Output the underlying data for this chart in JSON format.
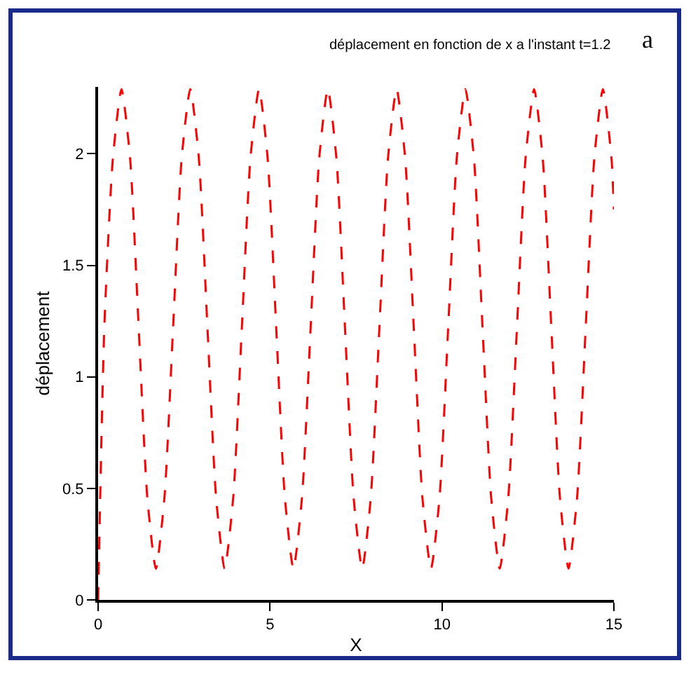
{
  "chart_data": {
    "type": "line",
    "title": "déplacement en fonction de x a l'instant t=1.2",
    "xlabel": "X",
    "ylabel": "déplacement",
    "annotations": [
      "a"
    ],
    "line_style": "dashed",
    "marker": "none",
    "xlim": [
      0,
      15
    ],
    "xticks": [
      0,
      5,
      10,
      15
    ],
    "ylim": [
      0,
      2.3
    ],
    "yticks": [
      0,
      0.5,
      1,
      1.5,
      2
    ],
    "series": [
      {
        "color": "#ff0000",
        "x": [
          0,
          0.18,
          0.43,
          0.68,
          0.93,
          1.18,
          1.43,
          1.68,
          1.93,
          2.18,
          2.43,
          2.68,
          2.93,
          3.18,
          3.43,
          3.68,
          3.93,
          4.18,
          4.43,
          4.68,
          4.93,
          5.18,
          5.43,
          5.68,
          5.93,
          6.18,
          6.43,
          6.68,
          6.93,
          7.18,
          7.43,
          7.68,
          7.93,
          8.18,
          8.43,
          8.68,
          8.93,
          9.18,
          9.43,
          9.68,
          9.93,
          10.18,
          10.43,
          10.68,
          10.93,
          11.18,
          11.43,
          11.68,
          11.93,
          12.18,
          12.43,
          12.68,
          12.93,
          13.18,
          13.43,
          13.68,
          13.93,
          14.18,
          14.43,
          14.68,
          14.93,
          15
        ],
        "values": [
          0,
          1.22,
          1.98,
          2.29,
          1.98,
          1.22,
          0.46,
          0.14,
          0.46,
          1.22,
          1.98,
          2.29,
          1.98,
          1.22,
          0.46,
          0.14,
          0.46,
          1.22,
          1.98,
          2.29,
          1.98,
          1.22,
          0.46,
          0.14,
          0.46,
          1.22,
          1.98,
          2.29,
          1.98,
          1.22,
          0.46,
          0.14,
          0.46,
          1.22,
          1.98,
          2.29,
          1.98,
          1.22,
          0.46,
          0.14,
          0.46,
          1.22,
          1.98,
          2.29,
          1.98,
          1.22,
          0.46,
          0.14,
          0.46,
          1.22,
          1.98,
          2.29,
          1.98,
          1.22,
          0.46,
          0.14,
          0.46,
          1.22,
          1.98,
          2.29,
          1.98,
          1.75
        ]
      }
    ]
  }
}
